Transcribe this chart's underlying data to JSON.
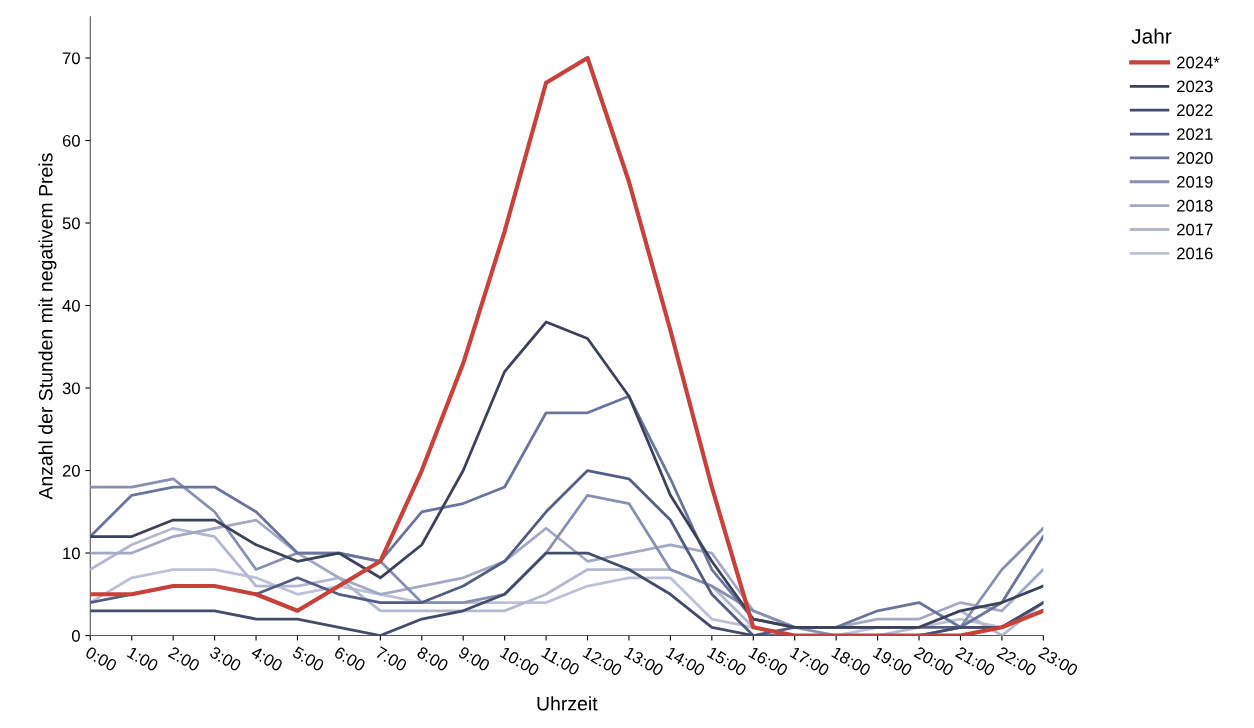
{
  "chart_data": {
    "type": "line",
    "xlabel": "Uhrzeit",
    "ylabel": "Anzahl der Stunden mit negativem Preis",
    "legend_title": "Jahr",
    "legend": "top right",
    "grid": false,
    "marker": "none",
    "line_style": "solid",
    "categories": [
      "0:00",
      "1:00",
      "2:00",
      "3:00",
      "4:00",
      "5:00",
      "6:00",
      "7:00",
      "8:00",
      "9:00",
      "10:00",
      "11:00",
      "12:00",
      "13:00",
      "14:00",
      "15:00",
      "16:00",
      "17:00",
      "18:00",
      "19:00",
      "20:00",
      "21:00",
      "22:00",
      "23:00"
    ],
    "ylim": [
      0,
      75
    ],
    "yticks": [
      0,
      10,
      20,
      30,
      40,
      50,
      60,
      70
    ],
    "series": [
      {
        "name": "2024*",
        "color": "#c8413b",
        "values": [
          5,
          5,
          6,
          6,
          5,
          3,
          6,
          9,
          20,
          33,
          49,
          67,
          70,
          55,
          37,
          18,
          1,
          0,
          0,
          0,
          0,
          0,
          1,
          3
        ]
      },
      {
        "name": "2023",
        "color": "#3b4259",
        "values": [
          12,
          12,
          14,
          14,
          11,
          9,
          10,
          7,
          11,
          20,
          32,
          38,
          36,
          29,
          17,
          9,
          2,
          1,
          1,
          1,
          1,
          3,
          4,
          6
        ]
      },
      {
        "name": "2022",
        "color": "#434c69",
        "values": [
          3,
          3,
          3,
          3,
          2,
          2,
          1,
          0,
          2,
          3,
          5,
          10,
          10,
          8,
          5,
          1,
          0,
          0,
          0,
          0,
          0,
          1,
          1,
          4
        ]
      },
      {
        "name": "2021",
        "color": "#535d82",
        "values": [
          4,
          5,
          null,
          null,
          5,
          7,
          5,
          4,
          4,
          6,
          9,
          15,
          20,
          19,
          14,
          5,
          0,
          1,
          1,
          1,
          1,
          1,
          1,
          4
        ]
      },
      {
        "name": "2020",
        "color": "#6b759b",
        "values": [
          12,
          17,
          18,
          18,
          15,
          10,
          10,
          9,
          15,
          16,
          18,
          27,
          27,
          29,
          19,
          8,
          2,
          1,
          1,
          3,
          4,
          1,
          4,
          12
        ]
      },
      {
        "name": "2019",
        "color": "#8890b0",
        "values": [
          18,
          18,
          19,
          15,
          8,
          10,
          10,
          9,
          4,
          4,
          5,
          10,
          17,
          16,
          8,
          6,
          3,
          1,
          0,
          0,
          0,
          1,
          8,
          13
        ]
      },
      {
        "name": "2018",
        "color": "#a3a9c4",
        "values": [
          10,
          10,
          12,
          13,
          14,
          10,
          7,
          5,
          6,
          7,
          9,
          13,
          9,
          10,
          11,
          10,
          3,
          1,
          1,
          2,
          2,
          4,
          3,
          8
        ]
      },
      {
        "name": "2017",
        "color": "#b3b8cf",
        "values": [
          8,
          11,
          13,
          12,
          6,
          6,
          7,
          3,
          3,
          3,
          3,
          5,
          8,
          8,
          8,
          6,
          1,
          0,
          0,
          0,
          1,
          3,
          0,
          4
        ]
      },
      {
        "name": "2016",
        "color": "#bdc1d7",
        "values": [
          4,
          7,
          8,
          8,
          7,
          5,
          6,
          5,
          4,
          4,
          4,
          4,
          6,
          7,
          7,
          2,
          1,
          0,
          0,
          1,
          1,
          2,
          1,
          3
        ]
      }
    ]
  }
}
